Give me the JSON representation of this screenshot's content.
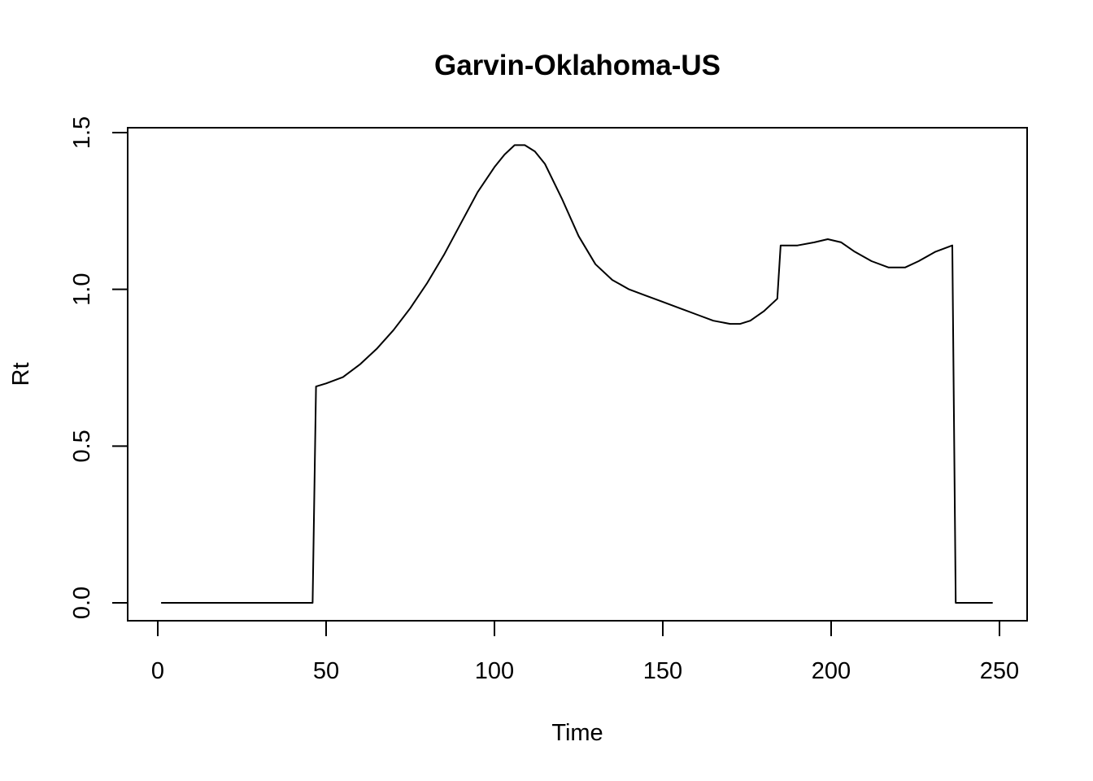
{
  "chart_data": {
    "type": "line",
    "title": "Garvin-Oklahoma-US",
    "xlabel": "Time",
    "ylabel": "Rt",
    "xlim": [
      0,
      250
    ],
    "ylim": [
      0,
      1.5
    ],
    "x_ticks": [
      0,
      50,
      100,
      150,
      200,
      250
    ],
    "y_ticks": [
      0.0,
      0.5,
      1.0,
      1.5
    ],
    "x_tick_labels": [
      "0",
      "50",
      "100",
      "150",
      "200",
      "250"
    ],
    "y_tick_labels": [
      "0.0",
      "0.5",
      "1.0",
      "1.5"
    ],
    "grid": false,
    "legend": "none",
    "line_color": "#000000",
    "series": [
      {
        "x": [
          1,
          46,
          47,
          50,
          55,
          60,
          65,
          70,
          75,
          80,
          85,
          90,
          95,
          100,
          103,
          106,
          109,
          112,
          115,
          120,
          125,
          130,
          135,
          140,
          145,
          150,
          155,
          160,
          165,
          170,
          173,
          176,
          180,
          184,
          185,
          190,
          195,
          199,
          203,
          207,
          212,
          217,
          222,
          226,
          231,
          236,
          237,
          248
        ],
        "y": [
          0,
          0,
          0.69,
          0.7,
          0.72,
          0.76,
          0.81,
          0.87,
          0.94,
          1.02,
          1.11,
          1.21,
          1.31,
          1.39,
          1.43,
          1.46,
          1.46,
          1.44,
          1.4,
          1.29,
          1.17,
          1.08,
          1.03,
          1.0,
          0.98,
          0.96,
          0.94,
          0.92,
          0.9,
          0.89,
          0.89,
          0.9,
          0.93,
          0.97,
          1.14,
          1.14,
          1.15,
          1.16,
          1.15,
          1.12,
          1.09,
          1.07,
          1.07,
          1.09,
          1.12,
          1.14,
          0,
          0
        ]
      }
    ]
  }
}
